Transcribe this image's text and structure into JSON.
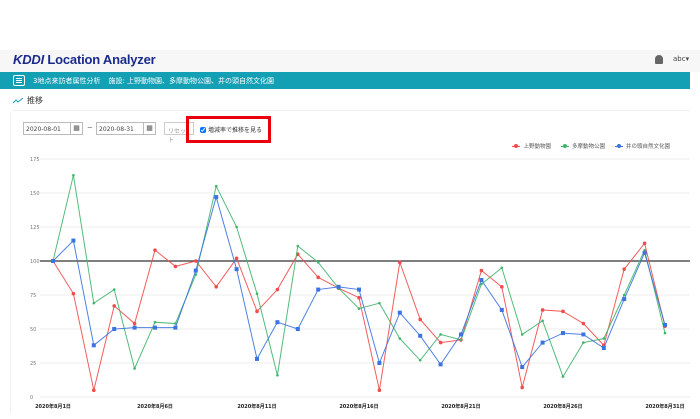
{
  "header": {
    "logo_brand": "KDDI",
    "logo_product": "Location Analyzer",
    "user": "abc▾",
    "bell_icon": "bell-icon"
  },
  "nav": {
    "title": "3地点来訪者属性分析",
    "facilities": "施設: 上野動物園、多摩動物公園、井の頭自然文化園"
  },
  "section": {
    "title": "推移"
  },
  "controls": {
    "start_date": "2020-08-01",
    "end_date": "2020-08-31",
    "separator": "~",
    "reset_label": "リセット",
    "checkbox_label": "増減率で推移を見る",
    "checkbox_checked": true
  },
  "colors": {
    "red": "#f24b4b",
    "green": "#3fb56a",
    "blue": "#3b73e0",
    "teal": "#14a0b4"
  },
  "chart_data": {
    "type": "line",
    "title": "",
    "xlabel": "",
    "ylabel": "",
    "ylim": [
      0,
      175
    ],
    "yticks": [
      0,
      25,
      50,
      75,
      100,
      125,
      150,
      175
    ],
    "xtick_labels": [
      "2020年8月1日",
      "2020年8月6日",
      "2020年8月11日",
      "2020年8月16日",
      "2020年8月21日",
      "2020年8月26日",
      "2020年8月31日"
    ],
    "x_days": 31,
    "reference_line": 100,
    "legend_position": "top-right",
    "series": [
      {
        "name": "上野動物園",
        "color": "#f24b4b",
        "values": [
          100,
          76,
          5,
          67,
          54,
          108,
          96,
          100,
          81,
          102,
          63,
          79,
          105,
          88,
          80,
          73,
          5,
          99,
          57,
          40,
          42,
          93,
          81,
          7,
          64,
          63,
          54,
          38,
          94,
          113,
          52
        ]
      },
      {
        "name": "多摩動物公園",
        "color": "#3fb56a",
        "values": [
          100,
          163,
          69,
          79,
          21,
          55,
          54,
          90,
          155,
          125,
          76,
          16,
          111,
          99,
          80,
          65,
          69,
          43,
          27,
          46,
          42,
          83,
          95,
          46,
          56,
          15,
          40,
          43,
          75,
          108,
          47
        ]
      },
      {
        "name": "井の頭自然文化園",
        "color": "#3b73e0",
        "values": [
          100,
          115,
          38,
          50,
          51,
          51,
          51,
          93,
          147,
          94,
          28,
          55,
          50,
          79,
          81,
          79,
          25,
          62,
          45,
          24,
          46,
          86,
          64,
          22,
          40,
          47,
          46,
          36,
          72,
          106,
          53
        ]
      }
    ]
  }
}
